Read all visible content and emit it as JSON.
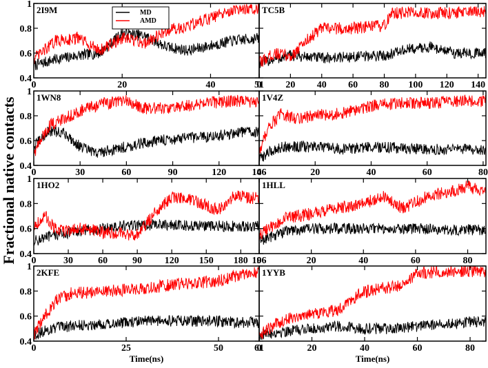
{
  "chart_data": {
    "type": "line",
    "ylabel": "Fractional native contacts",
    "legend": {
      "placement": "inside top of first panel",
      "entries": [
        {
          "name": "MD",
          "color": "#000000"
        },
        {
          "name": "AMD",
          "color": "#ff0000"
        }
      ]
    },
    "colors": {
      "MD": "#000000",
      "AMD": "#ff0000"
    },
    "panels": [
      {
        "name": "2I9M",
        "xlim": [
          0,
          51
        ],
        "ylim": [
          0.4,
          1
        ],
        "xticks": [
          0,
          20,
          40,
          51
        ],
        "yticks": [
          0.4,
          0.6,
          0.8,
          1
        ],
        "xtick_labels": [
          "0",
          "20",
          "40",
          "51"
        ],
        "ytick_labels": [
          "0.4",
          "0.6",
          "0.8",
          "1"
        ],
        "xlabel": "",
        "series": [
          {
            "name": "MD",
            "x": [
              0,
              5,
              10,
              15,
              20,
              25,
              30,
              35,
              40,
              45,
              51
            ],
            "y": [
              0.5,
              0.55,
              0.58,
              0.6,
              0.76,
              0.74,
              0.65,
              0.62,
              0.66,
              0.7,
              0.72
            ]
          },
          {
            "name": "AMD",
            "x": [
              0,
              5,
              10,
              15,
              20,
              25,
              30,
              35,
              40,
              45,
              51
            ],
            "y": [
              0.55,
              0.7,
              0.72,
              0.62,
              0.72,
              0.68,
              0.78,
              0.82,
              0.88,
              0.94,
              0.96
            ]
          }
        ]
      },
      {
        "name": "TC5B",
        "xlim": [
          0,
          145
        ],
        "ylim": [
          0.4,
          1
        ],
        "xticks": [
          0,
          20,
          40,
          60,
          80,
          100,
          120,
          140
        ],
        "yticks": [
          0.4,
          0.6,
          0.8,
          1
        ],
        "xtick_labels": [
          "0",
          "20",
          "40",
          "60",
          "80",
          "100",
          "120",
          "140"
        ],
        "ytick_labels": [
          "",
          "",
          "",
          ""
        ],
        "xlabel": "",
        "series": [
          {
            "name": "MD",
            "x": [
              0,
              20,
              40,
              60,
              80,
              95,
              110,
              125,
              145
            ],
            "y": [
              0.52,
              0.58,
              0.56,
              0.57,
              0.58,
              0.63,
              0.65,
              0.6,
              0.6
            ]
          },
          {
            "name": "AMD",
            "x": [
              0,
              10,
              20,
              30,
              40,
              60,
              80,
              85,
              100,
              120,
              145
            ],
            "y": [
              0.52,
              0.6,
              0.57,
              0.7,
              0.8,
              0.8,
              0.82,
              0.92,
              0.93,
              0.92,
              0.93
            ]
          }
        ]
      },
      {
        "name": "1WN8",
        "xlim": [
          0,
          146
        ],
        "ylim": [
          0.4,
          1
        ],
        "xticks": [
          0,
          30,
          60,
          90,
          120,
          146
        ],
        "yticks": [
          0.4,
          0.6,
          0.8,
          1
        ],
        "xtick_labels": [
          "0",
          "30",
          "60",
          "90",
          "120",
          "146"
        ],
        "ytick_labels": [
          "0.4",
          "0.6",
          "0.8",
          "1"
        ],
        "xlabel": "",
        "series": [
          {
            "name": "MD",
            "x": [
              0,
              10,
              20,
              30,
              40,
              60,
              80,
              100,
              120,
              140,
              146
            ],
            "y": [
              0.55,
              0.68,
              0.66,
              0.55,
              0.5,
              0.55,
              0.6,
              0.62,
              0.64,
              0.68,
              0.66
            ]
          },
          {
            "name": "AMD",
            "x": [
              0,
              10,
              20,
              30,
              45,
              60,
              70,
              90,
              110,
              130,
              146
            ],
            "y": [
              0.5,
              0.72,
              0.78,
              0.84,
              0.9,
              0.92,
              0.86,
              0.86,
              0.9,
              0.92,
              0.9
            ]
          }
        ]
      },
      {
        "name": "1V4Z",
        "xlim": [
          0,
          81
        ],
        "ylim": [
          0.4,
          1
        ],
        "xticks": [
          0,
          20,
          40,
          60,
          80
        ],
        "yticks": [
          0.4,
          0.6,
          0.8,
          1
        ],
        "xtick_labels": [
          "0",
          "20",
          "40",
          "60",
          "80"
        ],
        "ytick_labels": [
          "",
          "",
          "",
          ""
        ],
        "xlabel": "",
        "series": [
          {
            "name": "MD",
            "x": [
              0,
              3,
              8,
              12,
              20,
              30,
              40,
              50,
              60,
              70,
              81
            ],
            "y": [
              0.45,
              0.5,
              0.55,
              0.55,
              0.55,
              0.53,
              0.55,
              0.54,
              0.53,
              0.53,
              0.53
            ]
          },
          {
            "name": "AMD",
            "x": [
              0,
              3,
              8,
              12,
              20,
              30,
              40,
              50,
              60,
              70,
              81
            ],
            "y": [
              0.5,
              0.7,
              0.82,
              0.78,
              0.8,
              0.82,
              0.88,
              0.9,
              0.9,
              0.92,
              0.92
            ]
          }
        ]
      },
      {
        "name": "1HO2",
        "xlim": [
          0,
          196
        ],
        "ylim": [
          0.4,
          1
        ],
        "xticks": [
          0,
          30,
          60,
          90,
          120,
          150,
          180,
          196
        ],
        "yticks": [
          0.4,
          0.6,
          0.8,
          1
        ],
        "xtick_labels": [
          "0",
          "30",
          "60",
          "90",
          "120",
          "150",
          "180",
          "196"
        ],
        "ytick_labels": [
          "0.4",
          "0.6",
          "0.8",
          "1"
        ],
        "xlabel": "",
        "series": [
          {
            "name": "MD",
            "x": [
              0,
              20,
              40,
              60,
              80,
              100,
              120,
              140,
              160,
              180,
              196
            ],
            "y": [
              0.5,
              0.55,
              0.58,
              0.6,
              0.62,
              0.63,
              0.63,
              0.62,
              0.62,
              0.62,
              0.62
            ]
          },
          {
            "name": "AMD",
            "x": [
              0,
              10,
              20,
              40,
              60,
              90,
              105,
              120,
              140,
              160,
              175,
              196
            ],
            "y": [
              0.62,
              0.7,
              0.58,
              0.6,
              0.57,
              0.55,
              0.72,
              0.85,
              0.82,
              0.75,
              0.86,
              0.84
            ]
          }
        ]
      },
      {
        "name": "1HLL",
        "xlim": [
          0,
          87
        ],
        "ylim": [
          0.4,
          1
        ],
        "xticks": [
          0,
          20,
          40,
          60,
          80
        ],
        "yticks": [
          0.4,
          0.6,
          0.8,
          1
        ],
        "xtick_labels": [
          "0",
          "20",
          "40",
          "60",
          "80"
        ],
        "ytick_labels": [
          "",
          "",
          "",
          ""
        ],
        "xlabel": "",
        "series": [
          {
            "name": "MD",
            "x": [
              0,
              10,
              20,
              30,
              40,
              50,
              60,
              70,
              87
            ],
            "y": [
              0.5,
              0.58,
              0.6,
              0.6,
              0.6,
              0.6,
              0.6,
              0.59,
              0.59
            ]
          },
          {
            "name": "AMD",
            "x": [
              0,
              10,
              20,
              30,
              40,
              48,
              55,
              65,
              75,
              80,
              87
            ],
            "y": [
              0.55,
              0.68,
              0.72,
              0.76,
              0.8,
              0.86,
              0.76,
              0.86,
              0.9,
              0.94,
              0.88
            ]
          }
        ]
      },
      {
        "name": "2KFE",
        "xlim": [
          0,
          61
        ],
        "ylim": [
          0.4,
          1
        ],
        "xticks": [
          0,
          25,
          50,
          61
        ],
        "yticks": [
          0.4,
          0.6,
          0.8,
          1
        ],
        "xtick_labels": [
          "0",
          "25",
          "50",
          "61"
        ],
        "ytick_labels": [
          "0.4",
          "0.6",
          "0.8",
          "1"
        ],
        "xlabel": "Time(ns)",
        "series": [
          {
            "name": "MD",
            "x": [
              0,
              5,
              10,
              20,
              30,
              40,
              50,
              55,
              61
            ],
            "y": [
              0.45,
              0.5,
              0.52,
              0.54,
              0.56,
              0.56,
              0.56,
              0.55,
              0.55
            ]
          },
          {
            "name": "AMD",
            "x": [
              0,
              3,
              6,
              10,
              20,
              30,
              40,
              50,
              55,
              61
            ],
            "y": [
              0.45,
              0.6,
              0.72,
              0.78,
              0.8,
              0.82,
              0.86,
              0.88,
              0.92,
              0.95
            ]
          }
        ]
      },
      {
        "name": "1YYB",
        "xlim": [
          0,
          86
        ],
        "ylim": [
          0.4,
          1
        ],
        "xticks": [
          0,
          20,
          40,
          60,
          80
        ],
        "yticks": [
          0.4,
          0.6,
          0.8,
          1
        ],
        "xtick_labels": [
          "0",
          "20",
          "40",
          "60",
          "80"
        ],
        "ytick_labels": [
          "",
          "",
          "",
          ""
        ],
        "xlabel": "Time(ns)",
        "series": [
          {
            "name": "MD",
            "x": [
              0,
              10,
              20,
              30,
              40,
              50,
              60,
              70,
              86
            ],
            "y": [
              0.45,
              0.48,
              0.5,
              0.52,
              0.5,
              0.5,
              0.52,
              0.54,
              0.56
            ]
          },
          {
            "name": "AMD",
            "x": [
              0,
              10,
              20,
              30,
              38,
              45,
              55,
              60,
              70,
              86
            ],
            "y": [
              0.45,
              0.58,
              0.62,
              0.65,
              0.78,
              0.82,
              0.84,
              0.94,
              0.96,
              0.96
            ]
          }
        ]
      }
    ]
  }
}
